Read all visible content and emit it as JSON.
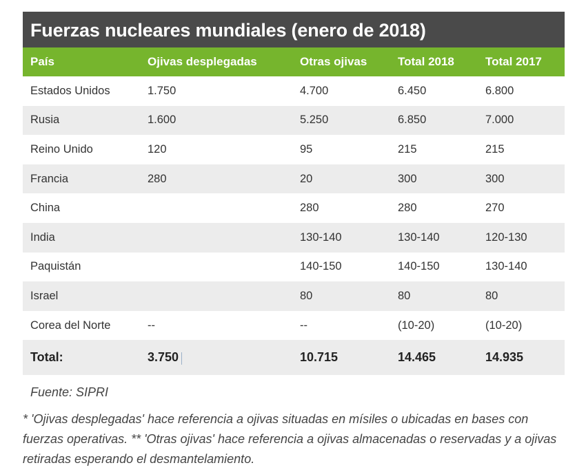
{
  "table": {
    "title": "Fuerzas nucleares mundiales (enero de 2018)",
    "headers": [
      "País",
      "Ojivas desplegadas",
      "Otras ojivas",
      "Total 2018",
      "Total 2017"
    ],
    "rows": [
      [
        "Estados Unidos",
        "1.750",
        "4.700",
        "6.450",
        "6.800"
      ],
      [
        "Rusia",
        "1.600",
        "5.250",
        "6.850",
        "7.000"
      ],
      [
        "Reino Unido",
        "120",
        "95",
        "215",
        "215"
      ],
      [
        "Francia",
        "280",
        "20",
        "300",
        "300"
      ],
      [
        "China",
        "",
        "280",
        "280",
        "270"
      ],
      [
        "India",
        "",
        "130-140",
        "130-140",
        "120-130"
      ],
      [
        "Paquistán",
        "",
        "140-150",
        "140-150",
        "130-140"
      ],
      [
        "Israel",
        "",
        "80",
        "80",
        "80"
      ],
      [
        "Corea del Norte",
        "--",
        "--",
        "(10-20)",
        "(10-20)"
      ]
    ],
    "total": [
      "Total:",
      "3.750",
      "10.715",
      "14.465",
      "14.935"
    ]
  },
  "source": "Fuente: SIPRI",
  "note": "* 'Ojivas desplegadas' hace referencia a ojivas situadas en mísiles o ubicadas en bases con fuerzas operativas. ** 'Otras ojivas' hace referencia a ojivas almacenadas o reservadas y a ojivas retiradas esperando el desmantelamiento.",
  "colors": {
    "title_bg": "#4a4a4a",
    "header_bg": "#76b52d",
    "row_alt_bg": "#ececec"
  }
}
